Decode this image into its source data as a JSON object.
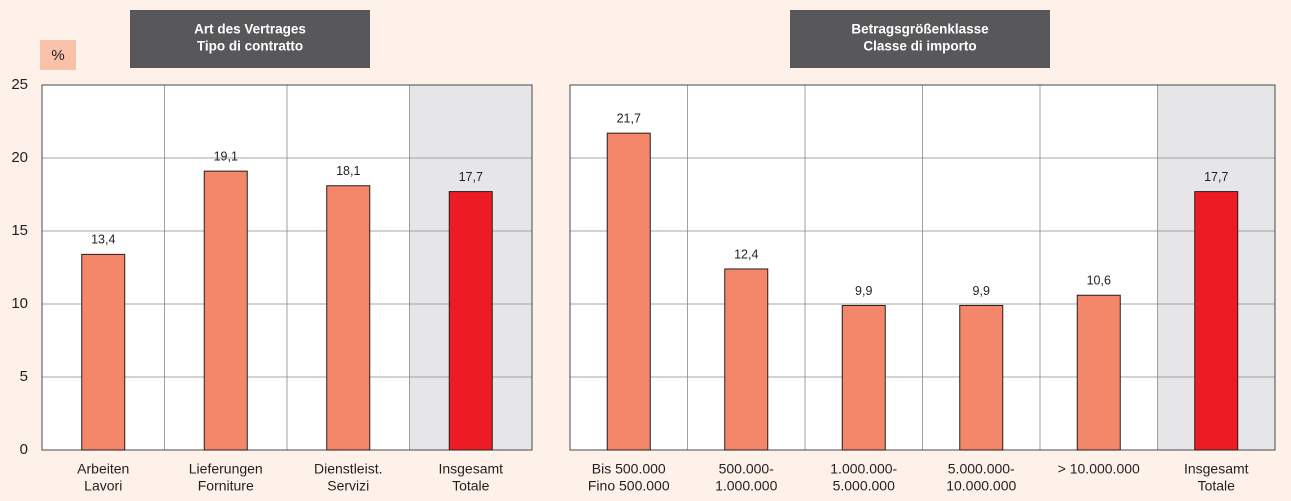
{
  "chart_data": [
    {
      "type": "bar",
      "title": [
        "Art des Vertrages",
        "Tipo di contratto"
      ],
      "ylabel": "%",
      "categories": [
        [
          "Arbeiten",
          "Lavori"
        ],
        [
          "Lieferungen",
          "Forniture"
        ],
        [
          "Dienstleist.",
          "Servizi"
        ],
        [
          "Insgesamt",
          "Totale"
        ]
      ],
      "values": [
        13.4,
        19.1,
        18.1,
        17.7
      ],
      "value_labels": [
        "13,4",
        "19,1",
        "18,1",
        "17,7"
      ],
      "colors": [
        "#f4866a",
        "#f4866a",
        "#f4866a",
        "#ed1c24"
      ],
      "highlight_last": true,
      "ylim": [
        0,
        25
      ],
      "yticks": [
        0,
        5,
        10,
        15,
        20,
        25
      ],
      "y_tick_labels": true,
      "grid": true
    },
    {
      "type": "bar",
      "title": [
        "Betragsgrößenklasse",
        "Classe di importo"
      ],
      "categories": [
        [
          "Bis 500.000",
          "Fino 500.000"
        ],
        [
          "500.000-",
          "1.000.000"
        ],
        [
          "1.000.000-",
          "5.000.000"
        ],
        [
          "5.000.000-",
          "10.000.000"
        ],
        [
          "> 10.000.000"
        ],
        [
          "Insgesamt",
          "Totale"
        ]
      ],
      "values": [
        21.7,
        12.4,
        9.9,
        9.9,
        10.6,
        17.7
      ],
      "value_labels": [
        "21,7",
        "12,4",
        "9,9",
        "9,9",
        "10,6",
        "17,7"
      ],
      "colors": [
        "#f4866a",
        "#f4866a",
        "#f4866a",
        "#f4866a",
        "#f4866a",
        "#ed1c24"
      ],
      "highlight_last": true,
      "ylim": [
        0,
        25
      ],
      "yticks": [
        0,
        5,
        10,
        15,
        20,
        25
      ],
      "y_tick_labels": false,
      "grid": true
    }
  ]
}
